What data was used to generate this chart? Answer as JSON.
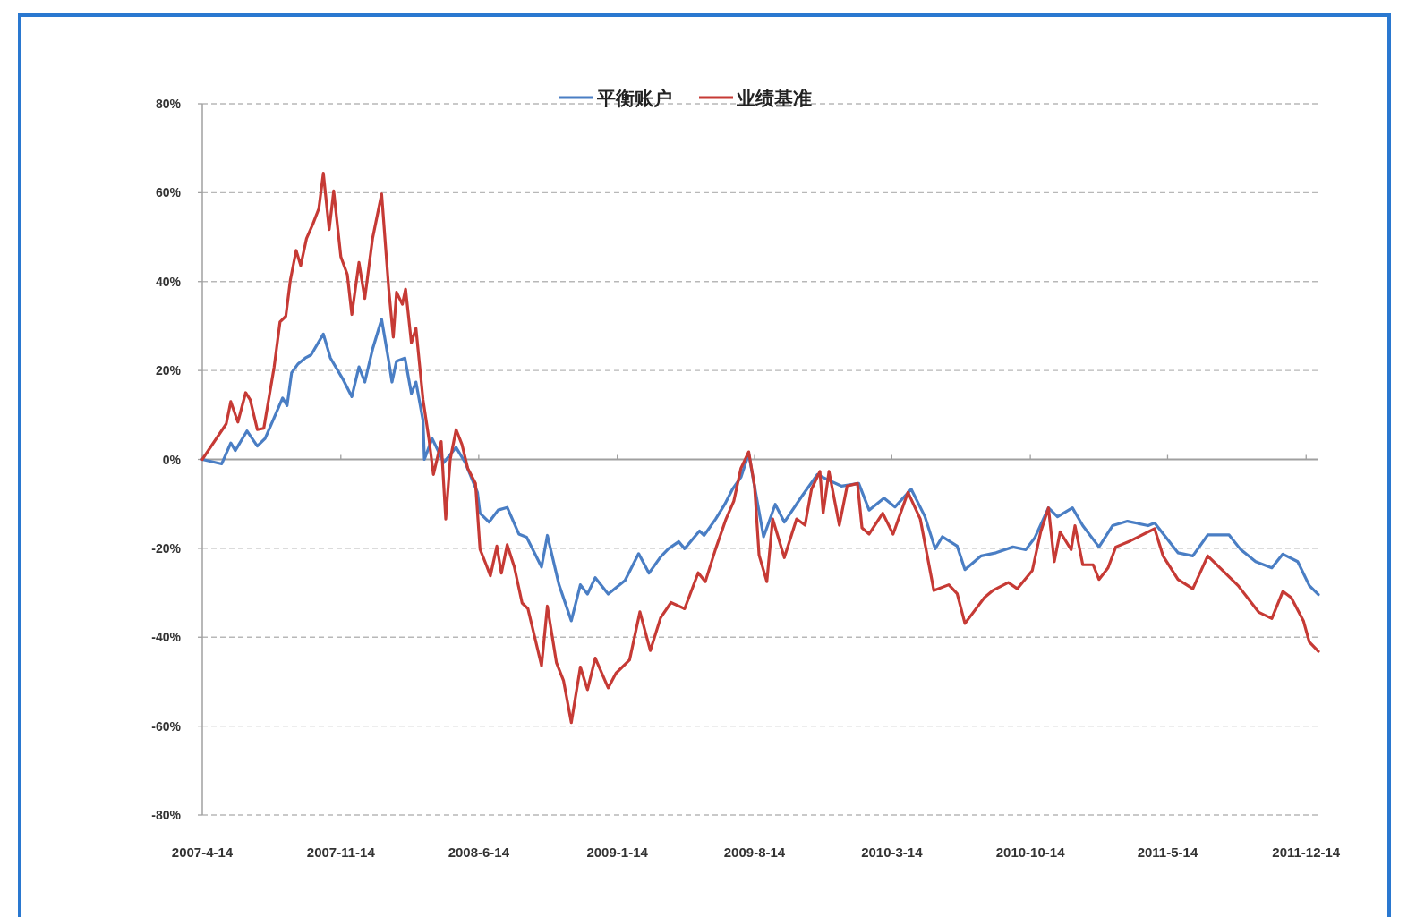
{
  "chart_data": {
    "type": "line",
    "grid": "y",
    "legend": "top",
    "line_style": "solid",
    "xlim": [
      "2007-04-14",
      "2012-01-02"
    ],
    "ylim": [
      -80,
      80
    ],
    "xticks": [
      {
        "value": "2007-04-14",
        "label": "2007-4-14"
      },
      {
        "value": "2007-11-14",
        "label": "2007-11-14"
      },
      {
        "value": "2008-06-14",
        "label": "2008-6-14"
      },
      {
        "value": "2009-01-14",
        "label": "2009-1-14"
      },
      {
        "value": "2009-08-14",
        "label": "2009-8-14"
      },
      {
        "value": "2010-03-14",
        "label": "2010-3-14"
      },
      {
        "value": "2010-10-14",
        "label": "2010-10-14"
      },
      {
        "value": "2011-05-14",
        "label": "2011-5-14"
      },
      {
        "value": "2011-12-14",
        "label": "2011-12-14"
      }
    ],
    "yticks": [
      {
        "value": 80,
        "label": "80%"
      },
      {
        "value": 60,
        "label": "60%"
      },
      {
        "value": 40,
        "label": "40%"
      },
      {
        "value": 20,
        "label": "20%"
      },
      {
        "value": 0,
        "label": "0%"
      },
      {
        "value": -20,
        "label": "-20%"
      },
      {
        "value": -40,
        "label": "-40%"
      },
      {
        "value": -60,
        "label": "-60%"
      },
      {
        "value": -80,
        "label": "-80%"
      }
    ],
    "series": [
      {
        "name": "平衡账户",
        "color": "#4a7ec4",
        "x": [
          "2007-04-14",
          "2007-05-14",
          "2007-05-28",
          "2007-06-04",
          "2007-06-22",
          "2007-07-08",
          "2007-07-20",
          "2007-08-03",
          "2007-08-16",
          "2007-08-23",
          "2007-08-30",
          "2007-09-09",
          "2007-09-20",
          "2007-09-29",
          "2007-10-18",
          "2007-10-29",
          "2007-11-17",
          "2007-12-01",
          "2007-12-12",
          "2007-12-21",
          "2008-01-02",
          "2008-01-16",
          "2008-01-27",
          "2008-02-01",
          "2008-02-08",
          "2008-02-21",
          "2008-03-02",
          "2008-03-09",
          "2008-03-20",
          "2008-03-22",
          "2008-04-03",
          "2008-04-21",
          "2008-05-10",
          "2008-05-24",
          "2008-06-12",
          "2008-06-16",
          "2008-06-30",
          "2008-07-14",
          "2008-07-28",
          "2008-08-15",
          "2008-08-27",
          "2008-09-19",
          "2008-09-28",
          "2008-10-16",
          "2008-11-04",
          "2008-11-18",
          "2008-11-29",
          "2008-12-11",
          "2008-12-31",
          "2009-01-26",
          "2009-02-16",
          "2009-03-04",
          "2009-03-22",
          "2009-04-03",
          "2009-04-19",
          "2009-04-28",
          "2009-05-21",
          "2009-05-28",
          "2009-06-15",
          "2009-06-29",
          "2009-07-11",
          "2009-07-24",
          "2009-08-05",
          "2009-08-19",
          "2009-08-28",
          "2009-09-15",
          "2009-09-29",
          "2009-10-27",
          "2009-11-19",
          "2009-12-07",
          "2009-12-26",
          "2010-01-22",
          "2010-02-07",
          "2010-03-02",
          "2010-03-19",
          "2010-04-13",
          "2010-05-04",
          "2010-05-20",
          "2010-05-31",
          "2010-06-23",
          "2010-07-05",
          "2010-07-30",
          "2010-08-22",
          "2010-09-17",
          "2010-10-07",
          "2010-10-21",
          "2010-11-11",
          "2010-11-25",
          "2010-12-18",
          "2011-01-03",
          "2011-01-28",
          "2011-02-18",
          "2011-03-13",
          "2011-04-14",
          "2011-04-24",
          "2011-05-30",
          "2011-06-22",
          "2011-07-15",
          "2011-08-17",
          "2011-09-04",
          "2011-09-27",
          "2011-10-22",
          "2011-11-08",
          "2011-12-01",
          "2011-12-19",
          "2012-01-02"
        ],
        "values": [
          0,
          -1,
          3.7,
          2,
          6.4,
          3,
          4.7,
          9.4,
          13.8,
          12.1,
          19.5,
          21.5,
          22.8,
          23.5,
          28.2,
          22.8,
          18.1,
          14.1,
          20.8,
          17.4,
          24.8,
          31.5,
          22.1,
          17.4,
          22.1,
          22.8,
          14.8,
          17.4,
          8.7,
          0,
          4.7,
          -0.7,
          2.7,
          -0.7,
          -7.4,
          -12.1,
          -14.1,
          -11.4,
          -10.8,
          -16.8,
          -17.5,
          -24.2,
          -17.1,
          -28.2,
          -36.3,
          -28.2,
          -30.3,
          -26.6,
          -30.3,
          -27.2,
          -21.2,
          -25.6,
          -21.9,
          -20.1,
          -18.5,
          -20.1,
          -16.1,
          -17.1,
          -13.4,
          -10.1,
          -6.7,
          -4,
          1.3,
          -10.1,
          -17.4,
          -10.1,
          -14.1,
          -8.1,
          -3.4,
          -4.7,
          -6,
          -5.4,
          -11.4,
          -8.7,
          -10.7,
          -6.7,
          -12.8,
          -20.1,
          -17.4,
          -19.5,
          -24.8,
          -21.7,
          -21,
          -19.7,
          -20.3,
          -17.6,
          -10.9,
          -12.9,
          -10.9,
          -14.9,
          -19.7,
          -14.9,
          -13.9,
          -14.9,
          -14.3,
          -21,
          -21.7,
          -17,
          -17,
          -20.3,
          -23,
          -24.4,
          -21.3,
          -23,
          -28.4,
          -30.4
        ]
      },
      {
        "name": "业绩基准",
        "color": "#c63a35",
        "x": [
          "2007-04-14",
          "2007-05-21",
          "2007-05-28",
          "2007-06-08",
          "2007-06-20",
          "2007-06-27",
          "2007-07-08",
          "2007-07-18",
          "2007-08-03",
          "2007-08-12",
          "2007-08-21",
          "2007-08-28",
          "2007-09-06",
          "2007-09-13",
          "2007-09-22",
          "2007-10-02",
          "2007-10-11",
          "2007-10-18",
          "2007-10-27",
          "2007-11-03",
          "2007-11-14",
          "2007-11-24",
          "2007-12-01",
          "2007-12-12",
          "2007-12-21",
          "2008-01-02",
          "2008-01-16",
          "2008-01-27",
          "2008-02-03",
          "2008-02-08",
          "2008-02-17",
          "2008-02-22",
          "2008-03-02",
          "2008-03-09",
          "2008-03-20",
          "2008-03-29",
          "2008-04-05",
          "2008-04-17",
          "2008-04-24",
          "2008-05-01",
          "2008-05-10",
          "2008-05-19",
          "2008-05-28",
          "2008-06-09",
          "2008-06-16",
          "2008-06-25",
          "2008-07-02",
          "2008-07-12",
          "2008-07-19",
          "2008-07-28",
          "2008-08-08",
          "2008-08-20",
          "2008-08-29",
          "2008-09-19",
          "2008-09-28",
          "2008-10-12",
          "2008-10-23",
          "2008-11-04",
          "2008-11-18",
          "2008-11-29",
          "2008-12-11",
          "2008-12-31",
          "2009-01-12",
          "2009-02-02",
          "2009-02-18",
          "2009-03-06",
          "2009-03-22",
          "2009-04-07",
          "2009-04-28",
          "2009-05-19",
          "2009-05-30",
          "2009-06-15",
          "2009-07-01",
          "2009-07-13",
          "2009-07-24",
          "2009-08-05",
          "2009-08-14",
          "2009-08-21",
          "2009-09-02",
          "2009-09-11",
          "2009-09-29",
          "2009-10-18",
          "2009-10-31",
          "2009-11-10",
          "2009-11-23",
          "2009-11-28",
          "2009-12-07",
          "2009-12-23",
          "2010-01-04",
          "2010-01-20",
          "2010-01-27",
          "2010-02-07",
          "2010-02-28",
          "2010-03-16",
          "2010-04-08",
          "2010-04-27",
          "2010-05-18",
          "2010-06-10",
          "2010-06-23",
          "2010-07-05",
          "2010-08-04",
          "2010-08-18",
          "2010-09-10",
          "2010-09-24",
          "2010-10-17",
          "2010-10-30",
          "2010-11-11",
          "2010-11-20",
          "2010-11-29",
          "2010-12-16",
          "2010-12-22",
          "2011-01-03",
          "2011-01-19",
          "2011-01-28",
          "2011-02-11",
          "2011-02-23",
          "2011-03-18",
          "2011-04-14",
          "2011-04-24",
          "2011-05-07",
          "2011-05-30",
          "2011-06-22",
          "2011-07-15",
          "2011-08-07",
          "2011-08-31",
          "2011-10-02",
          "2011-10-22",
          "2011-11-08",
          "2011-11-21",
          "2011-12-10",
          "2011-12-19",
          "2012-01-02"
        ],
        "values": [
          0,
          8,
          13,
          8.4,
          15,
          13.4,
          6.7,
          7,
          20.8,
          30.9,
          32.2,
          40.3,
          47,
          43.6,
          49.7,
          53,
          56.4,
          64.4,
          51.7,
          60.4,
          45.6,
          41.6,
          32.6,
          44.3,
          36.2,
          49.7,
          59.7,
          38.3,
          27.5,
          37.6,
          34.9,
          38.3,
          26.2,
          29.5,
          13.4,
          4.7,
          -3.4,
          4,
          -13.4,
          0,
          6.7,
          3.4,
          -2,
          -5.4,
          -20.2,
          -23.5,
          -26.2,
          -19.5,
          -25.6,
          -19.2,
          -24.2,
          -32.3,
          -33.6,
          -46.4,
          -33,
          -45.7,
          -49.8,
          -59.2,
          -46.7,
          -51.8,
          -44.7,
          -51.4,
          -48.1,
          -45.1,
          -34.3,
          -43,
          -35.6,
          -32.2,
          -33.6,
          -25.5,
          -27.5,
          -20.1,
          -13.4,
          -9.4,
          -2,
          1.7,
          -6,
          -21.5,
          -27.5,
          -13.4,
          -22.1,
          -13.4,
          -14.8,
          -6.7,
          -2.7,
          -12.1,
          -2.7,
          -14.8,
          -6,
          -5.4,
          -15.4,
          -16.8,
          -12.1,
          -16.8,
          -7.4,
          -13.4,
          -29.5,
          -28.2,
          -30.2,
          -36.9,
          -31.1,
          -29.4,
          -27.7,
          -29.1,
          -25,
          -16.3,
          -10.9,
          -23,
          -16.3,
          -20.3,
          -14.9,
          -23.7,
          -23.7,
          -27,
          -24.4,
          -19.7,
          -18.3,
          -16.3,
          -15.6,
          -21.7,
          -27,
          -29.1,
          -21.7,
          -25,
          -28.4,
          -34.4,
          -35.8,
          -29.7,
          -31.1,
          -36.4,
          -41.1,
          -43.2
        ]
      }
    ]
  }
}
